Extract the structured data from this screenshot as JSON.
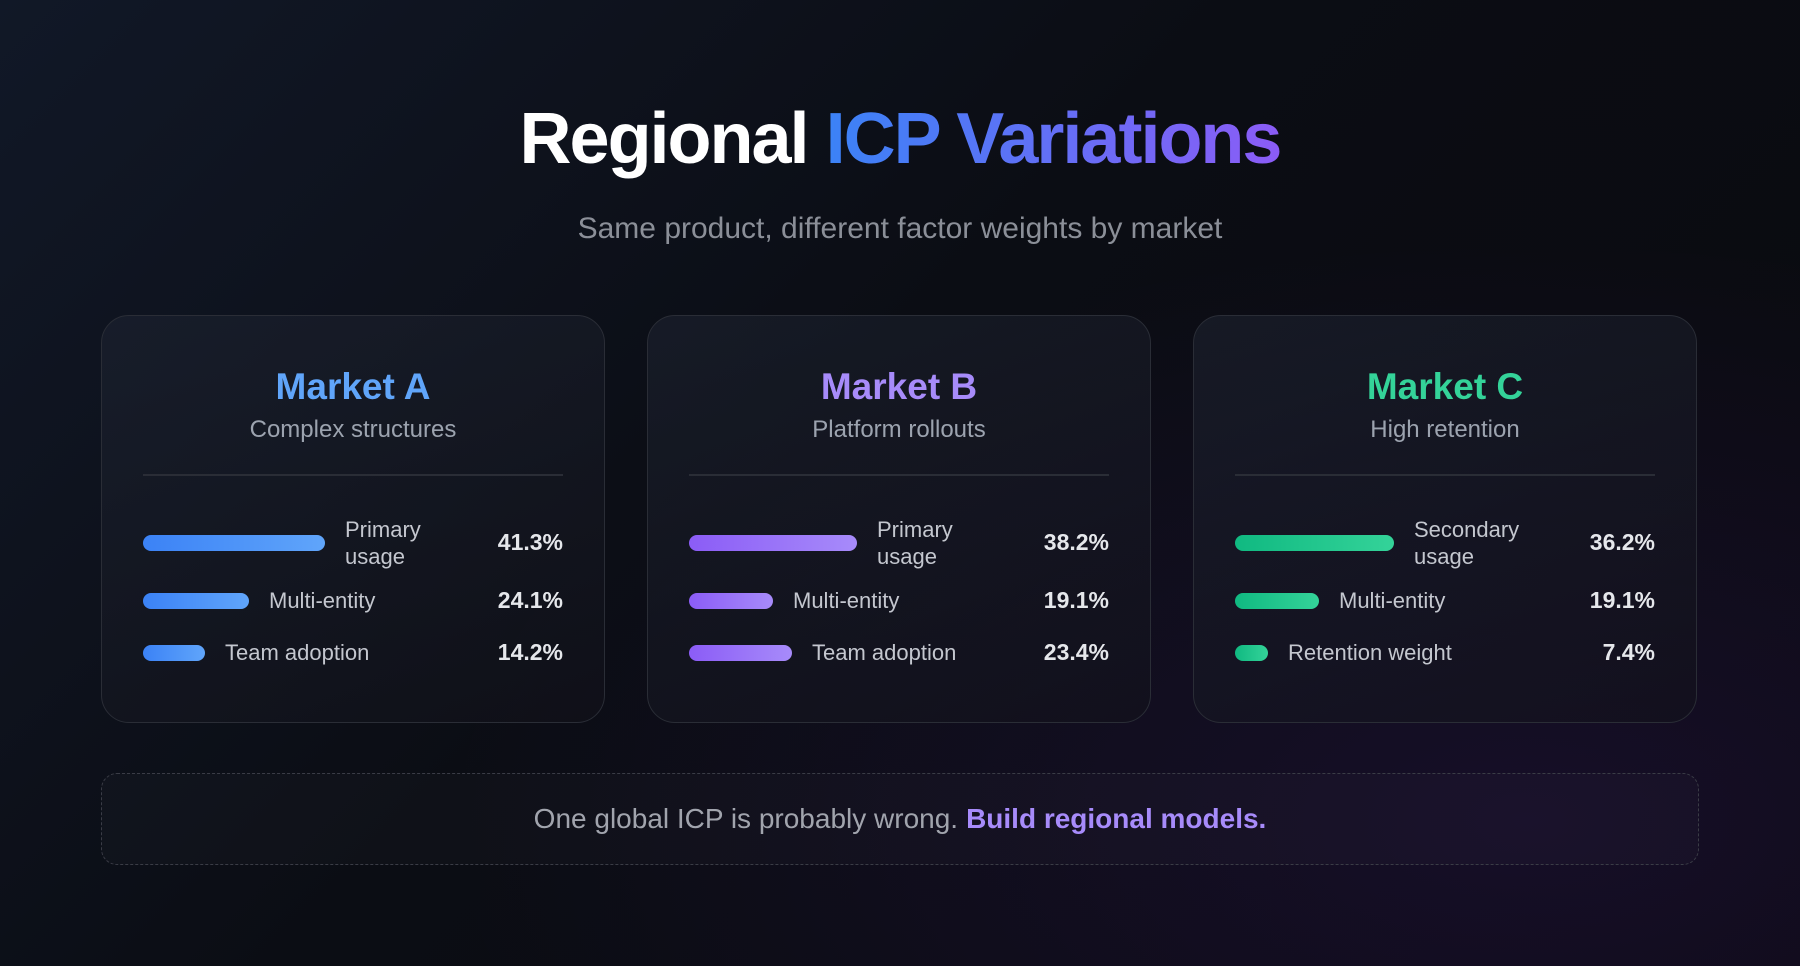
{
  "header": {
    "title_plain": "Regional",
    "title_accent": "ICP Variations",
    "subtitle": "Same product, different factor weights by market"
  },
  "markets": [
    {
      "name": "Market A",
      "tagline": "Complex structures",
      "color": "#60a5fa",
      "bar_from": "#3b82f6",
      "bar_to": "#60a5fa",
      "factors": [
        {
          "label": "Primary usage",
          "value": 41.3,
          "display": "41.3%"
        },
        {
          "label": "Multi-entity",
          "value": 24.1,
          "display": "24.1%"
        },
        {
          "label": "Team adoption",
          "value": 14.2,
          "display": "14.2%"
        }
      ]
    },
    {
      "name": "Market B",
      "tagline": "Platform rollouts",
      "color": "#a78bfa",
      "bar_from": "#8b5cf6",
      "bar_to": "#a78bfa",
      "factors": [
        {
          "label": "Primary usage",
          "value": 38.2,
          "display": "38.2%"
        },
        {
          "label": "Multi-entity",
          "value": 19.1,
          "display": "19.1%"
        },
        {
          "label": "Team adoption",
          "value": 23.4,
          "display": "23.4%"
        }
      ]
    },
    {
      "name": "Market C",
      "tagline": "High retention",
      "color": "#34d399",
      "bar_from": "#10b981",
      "bar_to": "#34d399",
      "factors": [
        {
          "label": "Secondary usage",
          "value": 36.2,
          "display": "36.2%"
        },
        {
          "label": "Multi-entity",
          "value": 19.1,
          "display": "19.1%"
        },
        {
          "label": "Retention weight",
          "value": 7.4,
          "display": "7.4%"
        }
      ]
    }
  ],
  "footer": {
    "text": "One global ICP is probably wrong.",
    "emphasis": "Build regional models."
  }
}
